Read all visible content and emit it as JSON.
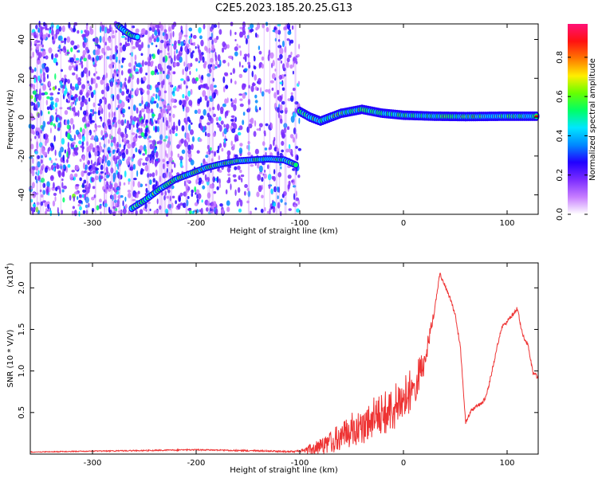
{
  "title": "C2E5.2023.185.20.25.G13",
  "chart_data": [
    {
      "type": "heatmap",
      "title": "",
      "xlabel": "Height of straight line (km)",
      "ylabel": "Frequency (Hz)",
      "xlim": [
        -360,
        130
      ],
      "ylim": [
        -50,
        48
      ],
      "xticks": [
        -300,
        -200,
        -100,
        0,
        100
      ],
      "yticks": [
        -40,
        -20,
        0,
        20,
        40
      ],
      "colorbar": {
        "label": "Normalized spectral amplitude",
        "range": [
          0,
          0.97
        ],
        "ticks": [
          "0.0",
          "0.2",
          "0.4",
          "0.6",
          "0.8"
        ],
        "colors": [
          "#ffffff",
          "#c77dff",
          "#7b2cff",
          "#2200ff",
          "#0088ff",
          "#00e6ff",
          "#00ff66",
          "#66ff00",
          "#ffee00",
          "#ff7700",
          "#ff1111",
          "#ff1177"
        ]
      },
      "traces": [
        {
          "name": "",
          "points": [
            [
              -262,
              -47
            ],
            [
              -250,
              -43
            ],
            [
              -235,
              -37
            ],
            [
              -220,
              -32
            ],
            [
              -205,
              -29
            ],
            [
              -190,
              -26
            ],
            [
              -175,
              -24
            ],
            [
              -160,
              -22.5
            ],
            [
              -145,
              -22
            ],
            [
              -130,
              -21.5
            ],
            [
              -115,
              -22
            ],
            [
              -102,
              -25
            ]
          ]
        },
        {
          "name": "",
          "points": [
            [
              -100,
              3
            ],
            [
              -90,
              0
            ],
            [
              -80,
              -2
            ],
            [
              -70,
              0
            ],
            [
              -60,
              2
            ],
            [
              -50,
              3
            ],
            [
              -40,
              4
            ],
            [
              -30,
              3
            ],
            [
              -20,
              2
            ],
            [
              0,
              1
            ],
            [
              30,
              0.5
            ],
            [
              60,
              0.3
            ],
            [
              100,
              0.5
            ],
            [
              130,
              0.5
            ]
          ]
        },
        {
          "name": "",
          "points": [
            [
              -275,
              47
            ],
            [
              -268,
              44
            ],
            [
              -262,
              42
            ],
            [
              -255,
              41
            ]
          ]
        }
      ]
    },
    {
      "type": "line",
      "title": "",
      "xlabel": "Height of straight line (km)",
      "ylabel": "SNR (10 * V/V)",
      "multiplier": "(x10",
      "multiplier_exp": "4",
      "multiplier_close": ")",
      "xlim": [
        -360,
        130
      ],
      "ylim": [
        0,
        2.3
      ],
      "xticks": [
        -300,
        -200,
        -100,
        0,
        100
      ],
      "yticks": [
        0.5,
        1.0,
        1.5,
        2.0
      ],
      "color": "#ee3333",
      "envelope": {
        "x": [
          -360,
          -250,
          -200,
          -150,
          -105,
          -100,
          -90,
          -80,
          -70,
          -60,
          -50,
          -40,
          -30,
          -20,
          -10,
          0,
          10,
          20,
          30,
          35,
          40,
          45,
          50,
          55,
          60,
          65,
          70,
          75,
          80,
          85,
          90,
          95,
          100,
          105,
          110,
          115,
          120,
          125,
          130
        ],
        "y": [
          0.03,
          0.05,
          0.06,
          0.05,
          0.04,
          0.05,
          0.12,
          0.2,
          0.28,
          0.38,
          0.5,
          0.55,
          0.68,
          0.75,
          0.82,
          0.95,
          1.05,
          1.3,
          1.75,
          2.2,
          2.05,
          1.9,
          1.7,
          1.3,
          0.4,
          0.55,
          0.6,
          0.63,
          0.72,
          1.0,
          1.3,
          1.55,
          1.62,
          1.7,
          1.78,
          1.45,
          1.35,
          1.0,
          0.95
        ]
      },
      "noise": {
        "x": [
          -360,
          -100,
          -90,
          -60,
          -30,
          0,
          20,
          30,
          130
        ],
        "amplitude": [
          0.01,
          0.02,
          0.15,
          0.35,
          0.5,
          0.6,
          0.35,
          0.05,
          0.05
        ]
      }
    }
  ]
}
